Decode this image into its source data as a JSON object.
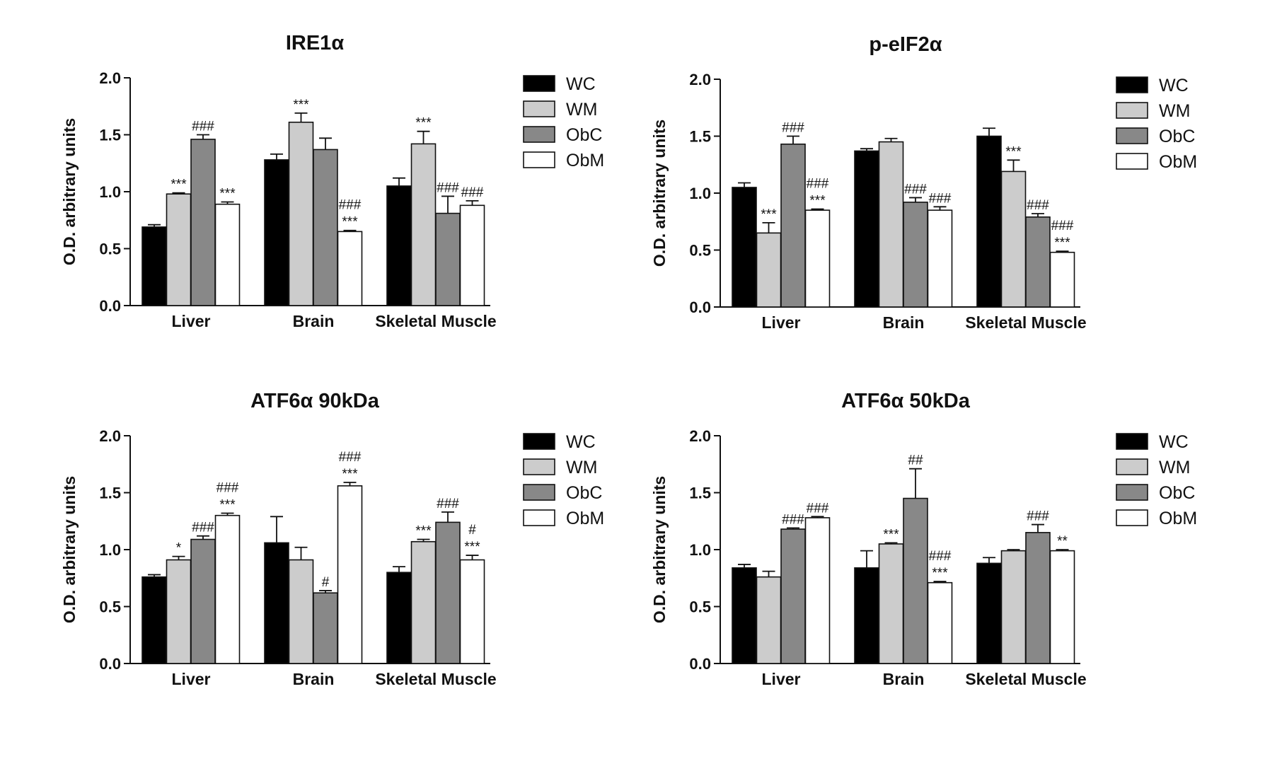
{
  "figure": {
    "legend_labels": [
      "WC",
      "WM",
      "ObC",
      "ObM"
    ]
  },
  "chart_data": [
    {
      "type": "bar",
      "title": "IRE1α",
      "ylabel": "O.D. arbitrary units",
      "ylim": [
        0,
        2.0
      ],
      "yticks": [
        "0.0",
        "0.5",
        "1.0",
        "1.5",
        "2.0"
      ],
      "categories": [
        "Liver",
        "Brain",
        "Skeletal Muscle"
      ],
      "legend_position": "right",
      "series": [
        {
          "name": "WC",
          "color": "#000000",
          "values": [
            0.69,
            1.28,
            1.05
          ],
          "errors": [
            0.02,
            0.05,
            0.07
          ],
          "annotations": [
            [],
            [],
            []
          ]
        },
        {
          "name": "WM",
          "color": "#cccccc",
          "values": [
            0.98,
            1.61,
            1.42
          ],
          "errors": [
            0.01,
            0.08,
            0.11
          ],
          "annotations": [
            [
              "***"
            ],
            [
              "***"
            ],
            [
              "***"
            ]
          ]
        },
        {
          "name": "ObC",
          "color": "#888888",
          "values": [
            1.46,
            1.37,
            0.81
          ],
          "errors": [
            0.04,
            0.1,
            0.15
          ],
          "annotations": [
            [
              "###"
            ],
            [],
            [
              "###"
            ]
          ]
        },
        {
          "name": "ObM",
          "color": "#ffffff",
          "values": [
            0.89,
            0.65,
            0.88
          ],
          "errors": [
            0.02,
            0.01,
            0.04
          ],
          "annotations": [
            [
              "***"
            ],
            [
              "###",
              "***"
            ],
            [
              "###"
            ]
          ]
        }
      ]
    },
    {
      "type": "bar",
      "title": "p-eIF2α",
      "ylabel": "O.D. arbitrary units",
      "ylim": [
        0,
        2.0
      ],
      "yticks": [
        "0.0",
        "0.5",
        "1.0",
        "1.5",
        "2.0"
      ],
      "categories": [
        "Liver",
        "Brain",
        "Skeletal Muscle"
      ],
      "legend_position": "right",
      "series": [
        {
          "name": "WC",
          "color": "#000000",
          "values": [
            1.05,
            1.37,
            1.5
          ],
          "errors": [
            0.04,
            0.02,
            0.07
          ],
          "annotations": [
            [],
            [],
            []
          ]
        },
        {
          "name": "WM",
          "color": "#cccccc",
          "values": [
            0.65,
            1.45,
            1.19
          ],
          "errors": [
            0.09,
            0.03,
            0.1
          ],
          "annotations": [
            [
              "***"
            ],
            [],
            [
              "***"
            ]
          ]
        },
        {
          "name": "ObC",
          "color": "#888888",
          "values": [
            1.43,
            0.92,
            0.79
          ],
          "errors": [
            0.07,
            0.04,
            0.03
          ],
          "annotations": [
            [
              "###"
            ],
            [
              "###"
            ],
            [
              "###"
            ]
          ]
        },
        {
          "name": "ObM",
          "color": "#ffffff",
          "values": [
            0.85,
            0.85,
            0.48
          ],
          "errors": [
            0.01,
            0.03,
            0.01
          ],
          "annotations": [
            [
              "###",
              "***"
            ],
            [
              "###"
            ],
            [
              "###",
              "***"
            ]
          ]
        }
      ]
    },
    {
      "type": "bar",
      "title": "ATF6α 90kDa",
      "ylabel": "O.D. arbitrary units",
      "ylim": [
        0,
        2.0
      ],
      "yticks": [
        "0.0",
        "0.5",
        "1.0",
        "1.5",
        "2.0"
      ],
      "categories": [
        "Liver",
        "Brain",
        "Skeletal Muscle"
      ],
      "legend_position": "right",
      "series": [
        {
          "name": "WC",
          "color": "#000000",
          "values": [
            0.76,
            1.06,
            0.8
          ],
          "errors": [
            0.02,
            0.23,
            0.05
          ],
          "annotations": [
            [],
            [],
            []
          ]
        },
        {
          "name": "WM",
          "color": "#cccccc",
          "values": [
            0.91,
            0.91,
            1.07
          ],
          "errors": [
            0.03,
            0.11,
            0.02
          ],
          "annotations": [
            [
              "*"
            ],
            [],
            [
              "***"
            ]
          ]
        },
        {
          "name": "ObC",
          "color": "#888888",
          "values": [
            1.09,
            0.62,
            1.24
          ],
          "errors": [
            0.03,
            0.02,
            0.09
          ],
          "annotations": [
            [
              "###"
            ],
            [
              "#"
            ],
            [
              "###"
            ]
          ]
        },
        {
          "name": "ObM",
          "color": "#ffffff",
          "values": [
            1.3,
            1.56,
            0.91
          ],
          "errors": [
            0.02,
            0.03,
            0.04
          ],
          "annotations": [
            [
              "###",
              "***"
            ],
            [
              "###",
              "***"
            ],
            [
              "#",
              "***"
            ]
          ]
        }
      ]
    },
    {
      "type": "bar",
      "title": "ATF6α 50kDa",
      "ylabel": "O.D. arbitrary units",
      "ylim": [
        0,
        2.0
      ],
      "yticks": [
        "0.0",
        "0.5",
        "1.0",
        "1.5",
        "2.0"
      ],
      "categories": [
        "Liver",
        "Brain",
        "Skeletal Muscle"
      ],
      "legend_position": "right",
      "series": [
        {
          "name": "WC",
          "color": "#000000",
          "values": [
            0.84,
            0.84,
            0.88
          ],
          "errors": [
            0.03,
            0.15,
            0.05
          ],
          "annotations": [
            [],
            [],
            []
          ]
        },
        {
          "name": "WM",
          "color": "#cccccc",
          "values": [
            0.76,
            1.05,
            0.99
          ],
          "errors": [
            0.05,
            0.01,
            0.01
          ],
          "annotations": [
            [],
            [
              "***"
            ],
            []
          ]
        },
        {
          "name": "ObC",
          "color": "#888888",
          "values": [
            1.18,
            1.45,
            1.15
          ],
          "errors": [
            0.01,
            0.26,
            0.07
          ],
          "annotations": [
            [
              "###"
            ],
            [
              "##"
            ],
            [
              "###"
            ]
          ]
        },
        {
          "name": "ObM",
          "color": "#ffffff",
          "values": [
            1.28,
            0.71,
            0.99
          ],
          "errors": [
            0.01,
            0.01,
            0.01
          ],
          "annotations": [
            [
              "###"
            ],
            [
              "###",
              "***"
            ],
            [
              "**"
            ]
          ]
        }
      ]
    }
  ]
}
